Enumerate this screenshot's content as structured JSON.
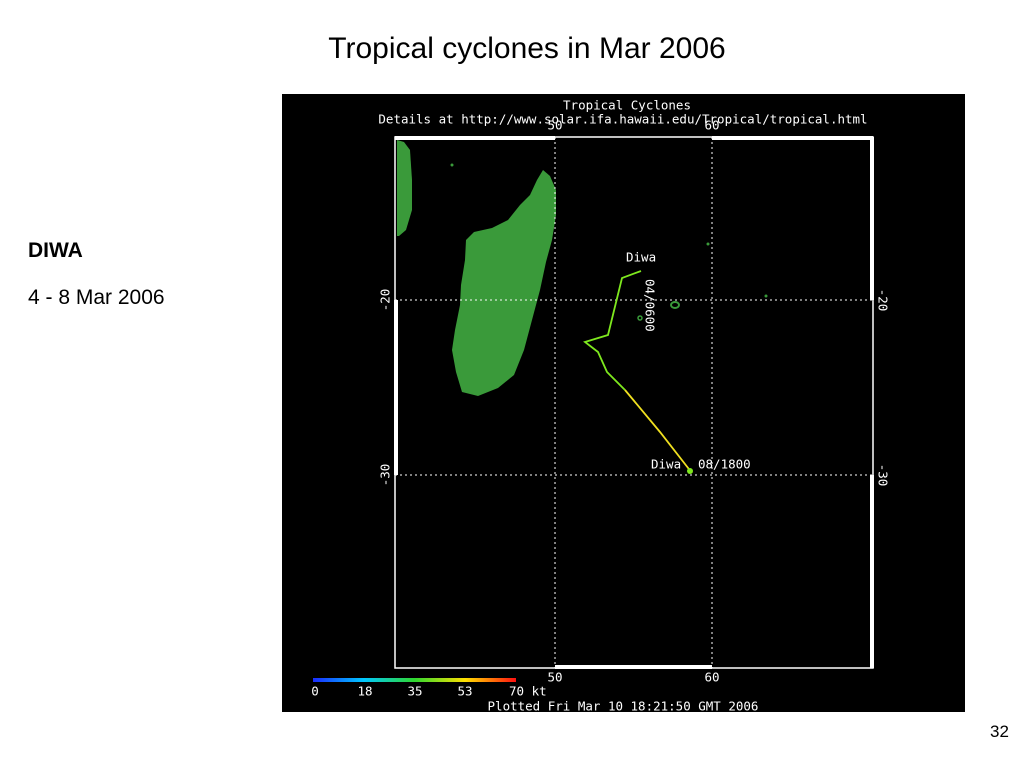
{
  "title": "Tropical cyclones in Mar 2006",
  "sidebar": {
    "name": "DIWA",
    "dates": "4 - 8 Mar 2006"
  },
  "map": {
    "title": "Tropical Cyclones",
    "details": "Details at http://www.solar.ifa.hawaii.edu/Tropical/tropical.html",
    "lon_labels": [
      "50",
      "60"
    ],
    "lat_labels": [
      "-20",
      "-30"
    ],
    "track_labels": [
      {
        "name": "Diwa",
        "time": "04/0600"
      },
      {
        "name": "Diwa",
        "time": "08/1800"
      }
    ],
    "colorbar_labels": [
      "0",
      "18",
      "35",
      "53",
      "70 kt"
    ],
    "footer": "Plotted Fri Mar 10 18:21:50 GMT 2006"
  },
  "page_number": "32"
}
